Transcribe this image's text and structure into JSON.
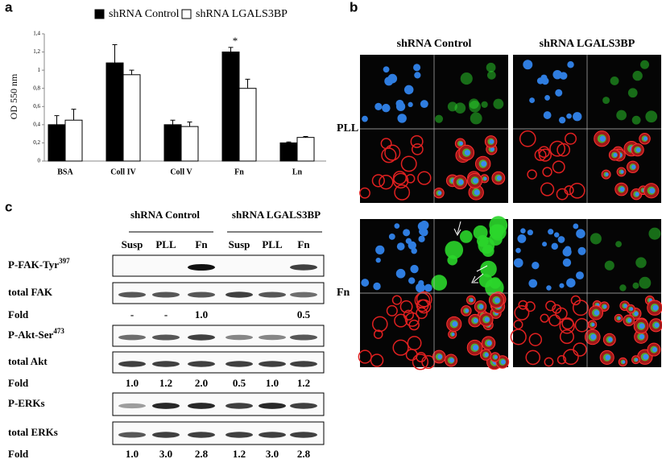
{
  "panel_labels": [
    "a",
    "b",
    "c"
  ],
  "chart_data": {
    "type": "bar",
    "ylabel": "OD 550 nm",
    "categories": [
      "BSA",
      "Coll IV",
      "Coll V",
      "Fn",
      "Ln"
    ],
    "series": [
      {
        "name": "shRNA Control",
        "color": "#000000",
        "values": [
          0.4,
          1.08,
          0.4,
          1.2,
          0.2
        ],
        "errors": [
          0.1,
          0.2,
          0.05,
          0.05,
          0.01
        ]
      },
      {
        "name": "shRNA LGALS3BP",
        "color": "#ffffff",
        "values": [
          0.45,
          0.95,
          0.38,
          0.8,
          0.26
        ],
        "errors": [
          0.12,
          0.05,
          0.05,
          0.1,
          0.01
        ]
      }
    ],
    "ylim": [
      0,
      1.4
    ],
    "yticks": [
      0,
      {
        "value": 0.2,
        "label": "0,2"
      },
      {
        "value": 0.4,
        "label": "0,4"
      },
      {
        "value": 0.6,
        "label": "0,6"
      },
      {
        "value": 0.8,
        "label": "0,8"
      },
      1,
      {
        "value": 1.2,
        "label": "1,2"
      },
      {
        "value": 1.4,
        "label": "1,4"
      }
    ],
    "annotation": "*"
  },
  "microscopy": {
    "columns": [
      "shRNA Control",
      "shRNA LGALS3BP"
    ],
    "rows": [
      "PLL",
      "Fn"
    ]
  },
  "blot": {
    "groups": [
      "shRNA Control",
      "shRNA LGALS3BP"
    ],
    "lanes": [
      "Susp",
      "PLL",
      "Fn",
      "Susp",
      "PLL",
      "Fn"
    ],
    "rows": [
      {
        "label": "P-FAK-Tyr",
        "superscript": "397"
      },
      {
        "label": "total FAK"
      },
      {
        "label": "Fold",
        "values": [
          "-",
          "-",
          "1.0",
          null,
          null,
          "0.5"
        ]
      },
      {
        "label": "P-Akt-Ser",
        "superscript": "473"
      },
      {
        "label": "total Akt"
      },
      {
        "label": "Fold",
        "values": [
          "1.0",
          "1.2",
          "2.0",
          "0.5",
          "1.0",
          "1.2"
        ]
      },
      {
        "label": "P-ERKs"
      },
      {
        "label": "total ERKs"
      },
      {
        "label": "Fold",
        "values": [
          "1.0",
          "3.0",
          "2.8",
          "1.2",
          "3.0",
          "2.8"
        ]
      }
    ]
  }
}
